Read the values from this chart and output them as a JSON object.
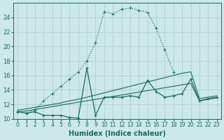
{
  "xlabel": "Humidex (Indice chaleur)",
  "background_color": "#cce8e8",
  "grid_color": "#aacccc",
  "line_color": "#1a6b5a",
  "ylim": [
    10,
    26
  ],
  "xlim": [
    -0.5,
    23.5
  ],
  "yticks": [
    10,
    12,
    14,
    16,
    18,
    20,
    22,
    24
  ],
  "xticks": [
    0,
    1,
    2,
    3,
    4,
    5,
    6,
    7,
    8,
    9,
    10,
    11,
    12,
    13,
    14,
    15,
    16,
    17,
    18,
    19,
    20,
    21,
    22,
    23
  ],
  "curve_dotted_x": [
    0,
    1,
    2,
    3,
    4,
    5,
    6,
    7,
    8,
    9,
    10,
    11,
    12,
    13,
    14,
    15,
    16,
    17,
    18
  ],
  "curve_dotted_y": [
    11.0,
    10.8,
    11.2,
    12.5,
    13.5,
    14.5,
    15.5,
    16.5,
    18.0,
    20.5,
    24.8,
    24.5,
    25.1,
    25.3,
    25.0,
    24.7,
    22.5,
    19.5,
    16.5
  ],
  "curve_solid_x": [
    0,
    1,
    2,
    3,
    4,
    5,
    6,
    7,
    8,
    9,
    10,
    11,
    12,
    13,
    14,
    15,
    16,
    17,
    18,
    19,
    20,
    21,
    22,
    23
  ],
  "curve_solid_y": [
    11.0,
    10.8,
    11.0,
    10.5,
    10.5,
    10.5,
    10.2,
    10.1,
    17.0,
    10.5,
    13.0,
    13.0,
    13.0,
    13.2,
    13.0,
    15.3,
    13.8,
    13.0,
    13.2,
    13.5,
    15.5,
    12.5,
    12.8,
    13.0
  ],
  "line_upper_x": [
    0,
    1,
    2,
    3,
    4,
    5,
    6,
    7,
    8,
    9,
    10,
    11,
    12,
    13,
    14,
    15,
    16,
    17,
    18,
    19,
    20,
    21,
    22,
    23
  ],
  "line_upper_y": [
    11.2,
    11.4,
    11.6,
    11.8,
    12.0,
    12.2,
    12.5,
    12.7,
    13.0,
    13.3,
    13.6,
    13.9,
    14.2,
    14.5,
    14.8,
    15.1,
    15.4,
    15.7,
    16.0,
    16.3,
    16.5,
    12.8,
    13.0,
    13.2
  ],
  "line_lower_x": [
    0,
    1,
    2,
    3,
    4,
    5,
    6,
    7,
    8,
    9,
    10,
    11,
    12,
    13,
    14,
    15,
    16,
    17,
    18,
    19,
    20,
    21,
    22,
    23
  ],
  "line_lower_y": [
    11.0,
    11.1,
    11.3,
    11.5,
    11.7,
    11.9,
    12.1,
    12.3,
    12.5,
    12.7,
    12.9,
    13.1,
    13.3,
    13.5,
    13.7,
    13.9,
    14.1,
    14.3,
    14.5,
    14.7,
    14.9,
    12.5,
    12.7,
    12.9
  ]
}
